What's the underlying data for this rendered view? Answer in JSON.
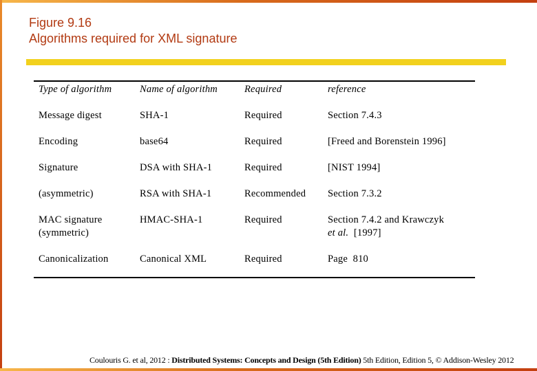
{
  "figure": {
    "number": "Figure 9.16",
    "title": "Algorithms required for XML signature"
  },
  "table": {
    "headers": [
      "Type of algorithm",
      "Name of algorithm",
      "Required",
      "reference"
    ],
    "rows": [
      [
        "Message digest",
        "SHA-1",
        "Required",
        "Section 7.4.3"
      ],
      [
        "Encoding",
        "base64",
        "Required",
        "[Freed and Borenstein 1996]"
      ],
      [
        "Signature",
        "DSA with SHA-1",
        "Required",
        "[NIST 1994]"
      ],
      [
        "(asymmetric)",
        "RSA with SHA-1",
        "Recommended",
        "Section 7.3.2"
      ],
      [
        "MAC signature",
        "HMAC-SHA-1",
        "Required",
        "Section 7.4.2 and Krawczyk"
      ],
      [
        "Canonicalization",
        "Canonical XML",
        "Required",
        "Page  810"
      ]
    ],
    "continuation": {
      "type": "(symmetric)",
      "ref_italic": "et al.",
      "ref_rest": "  [1997]"
    }
  },
  "footer": {
    "prefix": "Coulouris G. et al, 2012 : ",
    "bold": "Distributed Systems: Concepts and Design (5th Edition)",
    "suffix": " 5th Edition, Edition 5, © Addison-Wesley 2012"
  }
}
